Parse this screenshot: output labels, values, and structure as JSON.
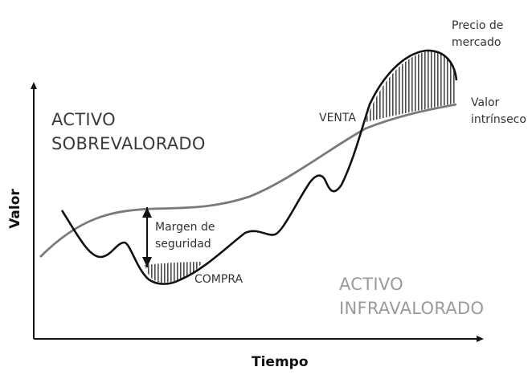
{
  "axes": {
    "y_label": "Valor",
    "x_label": "Tiempo"
  },
  "regions": {
    "overvalued": [
      "ACTIVO",
      "SOBREVALORADO"
    ],
    "undervalued": [
      "ACTIVO",
      "INFRAVALORADO"
    ]
  },
  "annotations": {
    "market_price": [
      "Precio de",
      "mercado"
    ],
    "intrinsic_value": [
      "Valor",
      "intrínseco"
    ],
    "sell": "VENTA",
    "buy": "COMPRA",
    "margin": [
      "Margen de",
      "seguridad"
    ]
  },
  "colors": {
    "intrinsic_line": "#7a7a7a",
    "price_line": "#111111",
    "hatch": "#4a4a4a",
    "axis": "#111111"
  }
}
